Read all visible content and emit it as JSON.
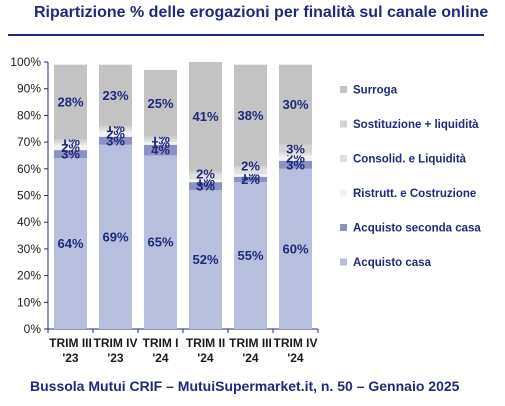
{
  "title": "Ripartizione % delle erogazioni per finalità sul canale online",
  "source": "Bussola Mutui CRIF – MutuiSupermarket.it, n. 50 – Gennaio 2025",
  "chart_data": {
    "type": "bar",
    "stacked": true,
    "categories": [
      [
        "TRIM III",
        "'23"
      ],
      [
        "TRIM IV",
        "'23"
      ],
      [
        "TRIM I",
        "'24"
      ],
      [
        "TRIM II",
        "'24"
      ],
      [
        "TRIM III",
        "'24"
      ],
      [
        "TRIM IV",
        "'24"
      ]
    ],
    "ylim": [
      0,
      100
    ],
    "yticks": [
      "0%",
      "10%",
      "20%",
      "30%",
      "40%",
      "50%",
      "60%",
      "70%",
      "80%",
      "90%",
      "100%"
    ],
    "legend_position": "right",
    "series": [
      {
        "name": "Acquisto casa",
        "values": [
          64,
          69,
          65,
          52,
          55,
          60
        ],
        "labels": [
          "64%",
          "69%",
          "65%",
          "52%",
          "55%",
          "60%"
        ],
        "color": "#b8bede"
      },
      {
        "name": "Acquisto seconda casa",
        "values": [
          3,
          3,
          4,
          3,
          2,
          3
        ],
        "labels": [
          "3%",
          "3%",
          "4%",
          "3%",
          "2%",
          "3%"
        ],
        "color": "#8c93c4"
      },
      {
        "name": "Ristrutt. e Costruzione",
        "values": [
          2,
          2,
          1,
          1,
          1,
          2
        ],
        "labels": [
          "2%",
          "2%",
          "1%",
          "1%",
          "1%",
          "2%"
        ],
        "color": "#f2f2f2"
      },
      {
        "name": "Consolid. e Liquidità",
        "values": [
          1,
          1,
          1,
          2,
          2,
          1
        ],
        "labels": [
          "",
          "",
          "",
          "",
          "",
          ""
        ],
        "color": "#e0e0e0"
      },
      {
        "name": "Sostituzione + liquidità",
        "values": [
          1,
          1,
          1,
          1,
          1,
          3
        ],
        "labels": [
          "1%",
          "1%",
          "1%",
          "",
          "",
          "3%"
        ],
        "color": "#d3d3d3"
      },
      {
        "name": "Surroga",
        "values": [
          28,
          23,
          25,
          41,
          38,
          30
        ],
        "labels": [
          "28%",
          "23%",
          "25%",
          "41%",
          "38%",
          "30%"
        ],
        "color": "#c3c3c3"
      }
    ],
    "extra_labels": [
      {
        "category": 3,
        "text": "2%",
        "value_at": 58
      },
      {
        "category": 4,
        "text": "2%",
        "value_at": 61
      }
    ],
    "label_color": "#1f2a7a",
    "axis_color": "#1f2a7a",
    "grid": false
  }
}
